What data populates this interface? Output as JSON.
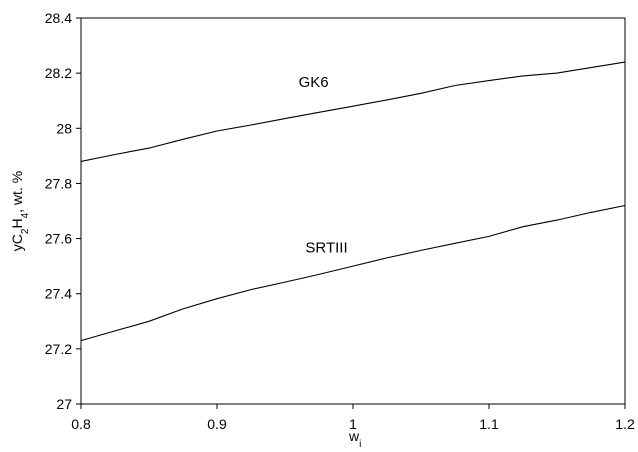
{
  "chart_data": {
    "type": "line",
    "title": "",
    "xlabel": "w",
    "xlabel_subscript": "i",
    "ylabel_parts": [
      "yC",
      "2",
      "H",
      "4",
      ", wt. %"
    ],
    "xlim": [
      0.8,
      1.2
    ],
    "ylim": [
      27,
      28.4
    ],
    "x_ticks": [
      0.8,
      0.9,
      1.0,
      1.1,
      1.2
    ],
    "x_tick_labels": [
      "0.8",
      "0.9",
      "1",
      "1.1",
      "1.2"
    ],
    "y_ticks": [
      27,
      27.2,
      27.4,
      27.6,
      27.8,
      28,
      28.2,
      28.4
    ],
    "y_tick_labels": [
      "27",
      "27.2",
      "27.4",
      "27.6",
      "27.8",
      "28",
      "28.2",
      "28.4"
    ],
    "grid": false,
    "legend": "none",
    "series": [
      {
        "name": "GK6",
        "label_at": [
          0.96,
          28.15
        ],
        "x": [
          0.8,
          0.825,
          0.85,
          0.875,
          0.9,
          0.925,
          0.95,
          0.975,
          1.0,
          1.025,
          1.05,
          1.075,
          1.1,
          1.125,
          1.15,
          1.175,
          1.2
        ],
        "y": [
          27.88,
          27.905,
          27.928,
          27.96,
          27.99,
          28.012,
          28.035,
          28.058,
          28.08,
          28.103,
          28.127,
          28.155,
          28.173,
          28.19,
          28.2,
          28.22,
          28.24
        ]
      },
      {
        "name": "SRTIII",
        "label_at": [
          0.965,
          27.55
        ],
        "x": [
          0.8,
          0.825,
          0.85,
          0.875,
          0.9,
          0.925,
          0.95,
          0.975,
          1.0,
          1.025,
          1.05,
          1.075,
          1.1,
          1.125,
          1.15,
          1.175,
          1.2
        ],
        "y": [
          27.23,
          27.265,
          27.3,
          27.345,
          27.382,
          27.415,
          27.442,
          27.47,
          27.5,
          27.53,
          27.557,
          27.583,
          27.608,
          27.643,
          27.667,
          27.695,
          27.72
        ]
      }
    ]
  }
}
